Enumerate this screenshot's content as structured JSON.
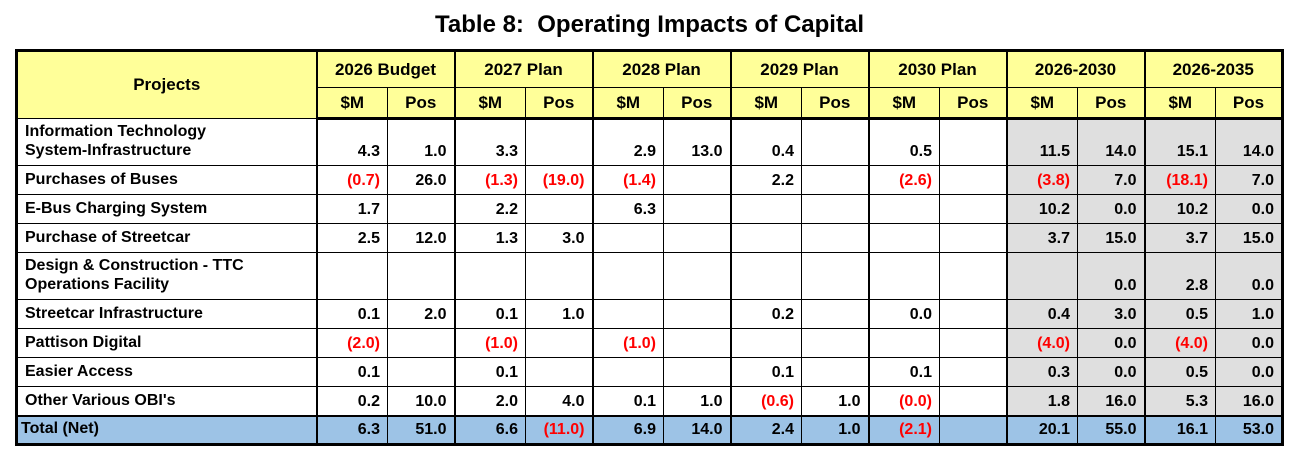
{
  "title": "Table 8:  Operating Impacts of Capital",
  "colors": {
    "header_bg": "#FFFF99",
    "summary_bg": "#DFDFDF",
    "total_bg": "#9DC3E6",
    "negative": "#FF0000",
    "border": "#000000"
  },
  "table": {
    "projects_header": "Projects",
    "sub_m": "$M",
    "sub_pos": "Pos",
    "col_groups": [
      "2026 Budget",
      "2027 Plan",
      "2028 Plan",
      "2029 Plan",
      "2030 Plan",
      "2026-2030",
      "2026-2035"
    ],
    "rows": [
      {
        "name": "Information Technology\nSystem-Infrastructure",
        "values": [
          "4.3",
          "1.0",
          "3.3",
          "",
          "2.9",
          "13.0",
          "0.4",
          "",
          "0.5",
          "",
          "11.5",
          "14.0",
          "15.1",
          "14.0"
        ]
      },
      {
        "name": "Purchases of Buses",
        "values": [
          "(0.7)",
          "26.0",
          "(1.3)",
          "(19.0)",
          "(1.4)",
          "",
          "2.2",
          "",
          "(2.6)",
          "",
          "(3.8)",
          "7.0",
          "(18.1)",
          "7.0"
        ]
      },
      {
        "name": "E-Bus Charging System",
        "values": [
          "1.7",
          "",
          "2.2",
          "",
          "6.3",
          "",
          "",
          "",
          "",
          "",
          "10.2",
          "0.0",
          "10.2",
          "0.0"
        ]
      },
      {
        "name": "Purchase of Streetcar",
        "values": [
          "2.5",
          "12.0",
          "1.3",
          "3.0",
          "",
          "",
          "",
          "",
          "",
          "",
          "3.7",
          "15.0",
          "3.7",
          "15.0"
        ]
      },
      {
        "name": "Design & Construction - TTC\nOperations Facility",
        "values": [
          "",
          "",
          "",
          "",
          "",
          "",
          "",
          "",
          "",
          "",
          "",
          "0.0",
          "2.8",
          "0.0"
        ]
      },
      {
        "name": "Streetcar Infrastructure",
        "values": [
          "0.1",
          "2.0",
          "0.1",
          "1.0",
          "",
          "",
          "0.2",
          "",
          "0.0",
          "",
          "0.4",
          "3.0",
          "0.5",
          "1.0"
        ]
      },
      {
        "name": "Pattison Digital",
        "values": [
          "(2.0)",
          "",
          "(1.0)",
          "",
          "(1.0)",
          "",
          "",
          "",
          "",
          "",
          "(4.0)",
          "0.0",
          "(4.0)",
          "0.0"
        ]
      },
      {
        "name": "Easier Access",
        "values": [
          "0.1",
          "",
          "0.1",
          "",
          "",
          "",
          "0.1",
          "",
          "0.1",
          "",
          "0.3",
          "0.0",
          "0.5",
          "0.0"
        ]
      },
      {
        "name": "Other Various OBI's",
        "values": [
          "0.2",
          "10.0",
          "2.0",
          "4.0",
          "0.1",
          "1.0",
          "(0.6)",
          "1.0",
          "(0.0)",
          "",
          "1.8",
          "16.0",
          "5.3",
          "16.0"
        ]
      }
    ],
    "total": {
      "name": "Total (Net)",
      "values": [
        "6.3",
        "51.0",
        "6.6",
        "(11.0)",
        "6.9",
        "14.0",
        "2.4",
        "1.0",
        "(2.1)",
        "",
        "20.1",
        "55.0",
        "16.1",
        "53.0"
      ]
    }
  }
}
